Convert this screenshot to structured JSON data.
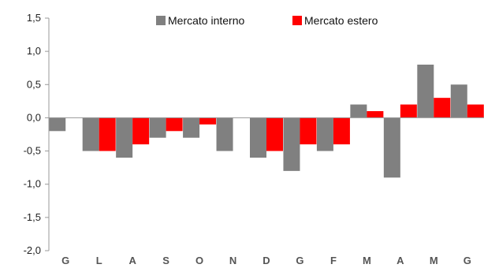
{
  "chart_data": {
    "type": "bar",
    "categories": [
      "G",
      "L",
      "A",
      "S",
      "O",
      "N",
      "D",
      "G",
      "F",
      "M",
      "A",
      "M",
      "G"
    ],
    "series": [
      {
        "name": "Mercato interno",
        "color": "#808080",
        "values": [
          -0.2,
          -0.5,
          -0.6,
          -0.3,
          -0.3,
          -0.5,
          -0.6,
          -0.8,
          -0.5,
          0.2,
          -0.9,
          0.8,
          0.5
        ]
      },
      {
        "name": "Mercato estero",
        "color": "#ff0000",
        "values": [
          null,
          -0.5,
          -0.4,
          -0.2,
          -0.1,
          null,
          -0.5,
          -0.4,
          -0.4,
          0.1,
          0.2,
          0.3,
          0.2
        ]
      }
    ],
    "y_ticks": [
      "1,5",
      "1,0",
      "0,5",
      "0,0",
      "-0,5",
      "-1,0",
      "-1,5",
      "-2,0"
    ],
    "ylim": [
      -2.0,
      1.5
    ],
    "grid": false,
    "legend_position": "top-center"
  }
}
